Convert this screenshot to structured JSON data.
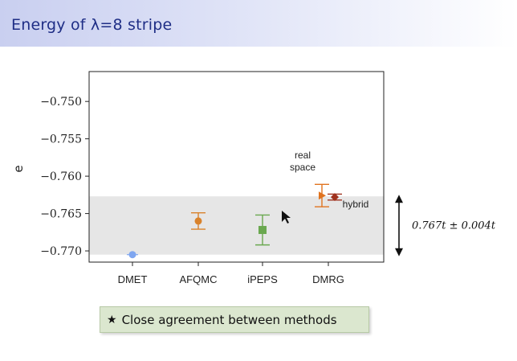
{
  "slide": {
    "title": "Energy of λ=8 stripe",
    "callout_text": "Close agreement between methods",
    "callout_icon": "star-icon"
  },
  "chart_data": {
    "type": "scatter",
    "ylabel": "e",
    "xlabel": "",
    "categories": [
      "DMET",
      "AFQMC",
      "iPEPS",
      "DMRG"
    ],
    "ylim": [
      -0.7715,
      -0.746
    ],
    "yticks": [
      -0.75,
      -0.755,
      -0.76,
      -0.765,
      -0.77
    ],
    "ytick_labels": [
      "−0.750",
      "−0.755",
      "−0.760",
      "−0.765",
      "−0.770"
    ],
    "shaded_band": [
      -0.7705,
      -0.7627
    ],
    "band_annotation": "0.767t ± 0.004t",
    "points": [
      {
        "category": "DMET",
        "offset": 0.0,
        "y": -0.7705,
        "err": 0.0,
        "color": "#7fa6f0",
        "marker": "circle"
      },
      {
        "category": "AFQMC",
        "offset": 0.0,
        "y": -0.766,
        "err": 0.0011,
        "color": "#d9822b",
        "marker": "diamond"
      },
      {
        "category": "iPEPS",
        "offset": 0.0,
        "y": -0.7672,
        "err": 0.002,
        "color": "#6aa84f",
        "marker": "square"
      },
      {
        "category": "DMRG",
        "offset": -0.2,
        "y": -0.7626,
        "err": 0.0015,
        "color": "#e0731f",
        "marker": "triangle"
      },
      {
        "category": "DMRG",
        "offset": 0.2,
        "y": -0.7628,
        "err": 0.0004,
        "color": "#a0321e",
        "marker": "star"
      }
    ],
    "annotations": [
      {
        "text": "real",
        "near": "DMRG real space point"
      },
      {
        "text": "space",
        "near": "DMRG real space point"
      },
      {
        "text": "hybrid",
        "near": "DMRG hybrid point"
      }
    ],
    "grid": false,
    "legend": "none",
    "colors": {
      "band": "#e6e6e6",
      "arrow": "#111111"
    }
  }
}
